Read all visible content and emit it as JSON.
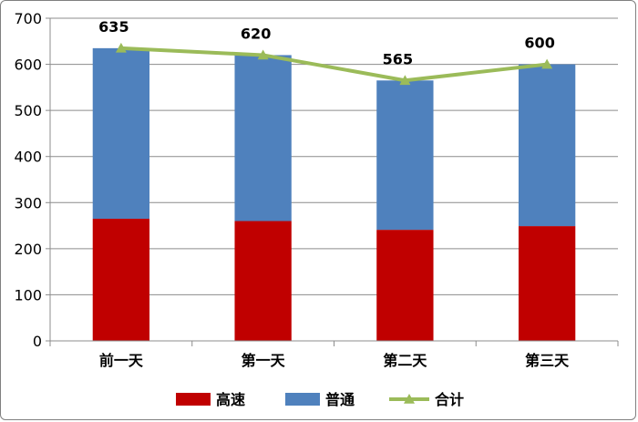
{
  "chart_data": {
    "type": "bar",
    "stacked": true,
    "categories": [
      "前一天",
      "第一天",
      "第二天",
      "第三天"
    ],
    "series": [
      {
        "name": "高速",
        "kind": "bar",
        "color": "#c00000",
        "values": [
          265,
          260,
          241,
          249
        ]
      },
      {
        "name": "普通",
        "kind": "bar",
        "color": "#4f81bd",
        "values": [
          370,
          360,
          324,
          351
        ]
      },
      {
        "name": "合计",
        "kind": "line",
        "color": "#9bbb59",
        "marker": "triangle",
        "values": [
          635,
          620,
          565,
          600
        ]
      }
    ],
    "data_labels": [
      "635",
      "620",
      "565",
      "600"
    ],
    "ylim": [
      0,
      700
    ],
    "yticks": [
      0,
      100,
      200,
      300,
      400,
      500,
      600,
      700
    ],
    "grid": true,
    "legend": "bottom"
  }
}
